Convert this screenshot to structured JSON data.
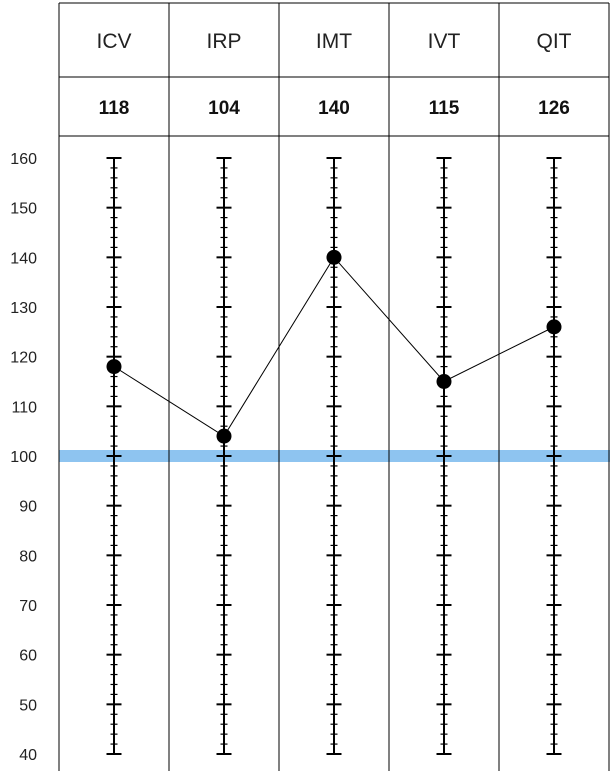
{
  "chart_data": {
    "type": "line",
    "categories": [
      "ICV",
      "IRP",
      "IMT",
      "IVT",
      "QIT"
    ],
    "values": [
      118,
      104,
      140,
      115,
      126
    ],
    "value_labels": [
      "118",
      "104",
      "140",
      "115",
      "126"
    ],
    "y_ticks": [
      "160",
      "150",
      "140",
      "130",
      "120",
      "110",
      "100",
      "90",
      "80",
      "70",
      "60",
      "50",
      "40"
    ],
    "ylim": [
      40,
      160
    ],
    "reference_line": 100,
    "grid": false,
    "colors": {
      "reference_line": "#8ec4f0",
      "marker": "#000000",
      "border": "#000000",
      "connector": "#000000"
    }
  }
}
